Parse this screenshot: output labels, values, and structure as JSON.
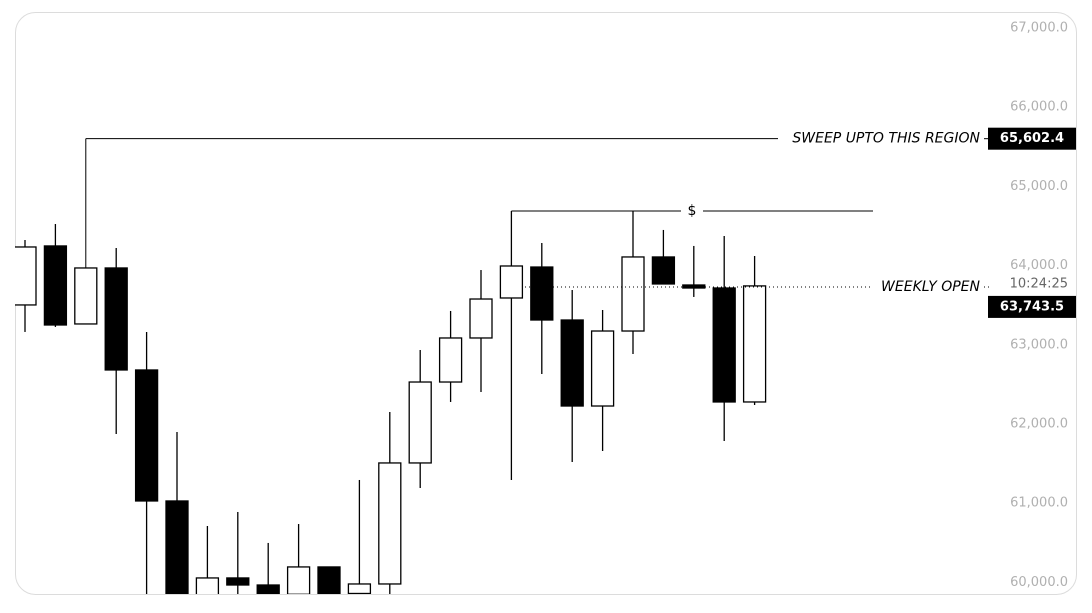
{
  "chart_data": {
    "type": "candlestick",
    "up_color": "#ffffff",
    "down_color": "#000000",
    "edge_color": "#000000",
    "open": [
      63503,
      64248,
      63263,
      63970,
      62682,
      61028,
      59800,
      60056,
      59967,
      59850,
      60195,
      59860,
      59980,
      61508,
      62530,
      63086,
      63591,
      63982,
      63313,
      62227,
      63174,
      64109,
      63755,
      63717,
      62278
    ],
    "high": [
      64323,
      64525,
      63970,
      64222,
      63162,
      61899,
      60712,
      60889,
      60498,
      60737,
      60195,
      61293,
      62152,
      62934,
      63427,
      63944,
      64689,
      64285,
      63692,
      63440,
      64689,
      64450,
      64248,
      64374,
      64121
    ],
    "low": [
      63162,
      63225,
      63263,
      61874,
      59700,
      59600,
      59600,
      59700,
      59700,
      59750,
      59750,
      59750,
      59800,
      61192,
      62278,
      62404,
      61293,
      62631,
      61520,
      61659,
      62884,
      63768,
      63604,
      61785,
      62240
    ],
    "close": [
      64235,
      63250,
      63970,
      62682,
      61028,
      59800,
      60056,
      59967,
      59850,
      60195,
      59850,
      59980,
      61508,
      62530,
      63086,
      63578,
      63995,
      63313,
      62227,
      63174,
      64109,
      63768,
      63717,
      62278,
      63743.5
    ],
    "ylim": [
      59866,
      67202
    ],
    "yticks": [
      {
        "value": 60000,
        "label": "60,000.0"
      },
      {
        "value": 61000,
        "label": "61,000.0"
      },
      {
        "value": 62000,
        "label": "62,000.0"
      },
      {
        "value": 63000,
        "label": "63,000.0"
      },
      {
        "value": 64000,
        "label": "64,000.0"
      },
      {
        "value": 65000,
        "label": "65,000.0"
      },
      {
        "value": 66000,
        "label": "66,000.0"
      },
      {
        "value": 67000,
        "label": "67,000.0"
      }
    ],
    "annotations": [
      {
        "text": "SWEEP UPTO THIS REGION",
        "value": 65602.4,
        "value_label": "65,602.4"
      },
      {
        "text": "$",
        "value": 64689
      },
      {
        "text": "WEEKLY OPEN",
        "value": 63730
      }
    ],
    "last_price": {
      "value": 63743.5,
      "value_label": "63,743.5",
      "countdown": "10:24:25"
    }
  }
}
